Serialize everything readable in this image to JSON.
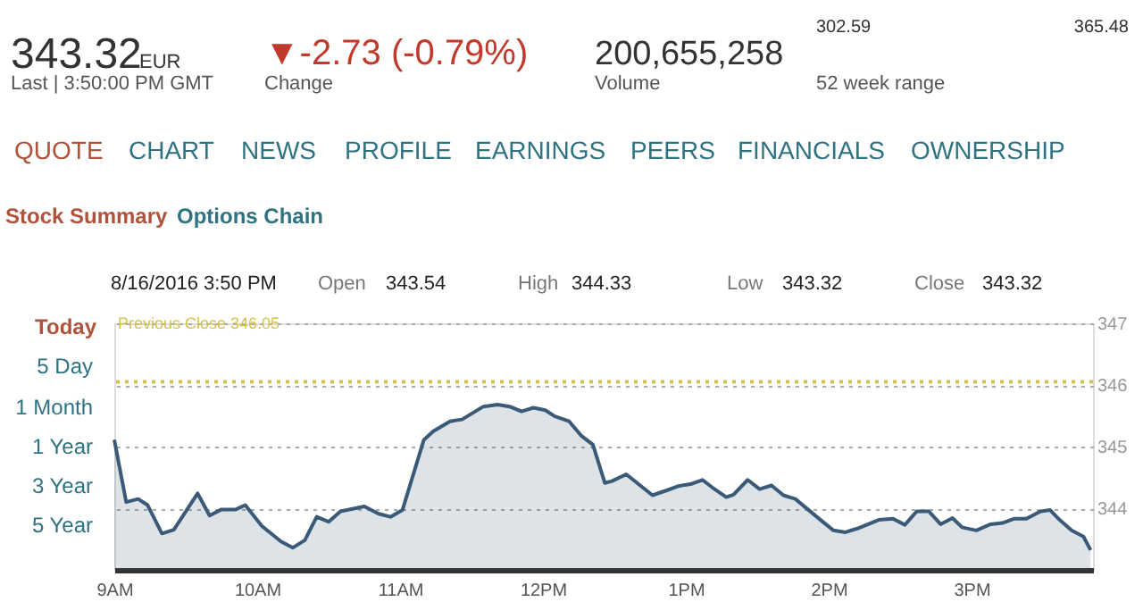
{
  "chart_data": {
    "type": "area",
    "x": [
      "2016-08-16T09:00",
      "2016-08-16T09:05",
      "2016-08-16T09:10",
      "2016-08-16T09:14",
      "2016-08-16T09:20",
      "2016-08-16T09:25",
      "2016-08-16T09:35",
      "2016-08-16T09:40",
      "2016-08-16T09:45",
      "2016-08-16T09:51",
      "2016-08-16T09:55",
      "2016-08-16T10:02",
      "2016-08-16T10:10",
      "2016-08-16T10:15",
      "2016-08-16T10:20",
      "2016-08-16T10:25",
      "2016-08-16T10:30",
      "2016-08-16T10:35",
      "2016-08-16T10:45",
      "2016-08-16T10:51",
      "2016-08-16T10:56",
      "2016-08-16T11:01",
      "2016-08-16T11:10",
      "2016-08-16T11:14",
      "2016-08-16T11:21",
      "2016-08-16T11:26",
      "2016-08-16T11:35",
      "2016-08-16T11:41",
      "2016-08-16T11:46",
      "2016-08-16T11:51",
      "2016-08-16T11:56",
      "2016-08-16T12:01",
      "2016-08-16T12:05",
      "2016-08-16T12:11",
      "2016-08-16T12:16",
      "2016-08-16T12:21",
      "2016-08-16T12:26",
      "2016-08-16T12:29",
      "2016-08-16T12:35",
      "2016-08-16T12:46",
      "2016-08-16T12:52",
      "2016-08-16T12:57",
      "2016-08-16T13:02",
      "2016-08-16T13:07",
      "2016-08-16T13:11",
      "2016-08-16T13:17",
      "2016-08-16T13:20",
      "2016-08-16T13:26",
      "2016-08-16T13:31",
      "2016-08-16T13:36",
      "2016-08-16T13:41",
      "2016-08-16T13:46",
      "2016-08-16T13:55",
      "2016-08-16T14:02",
      "2016-08-16T14:07",
      "2016-08-16T14:12",
      "2016-08-16T14:21",
      "2016-08-16T14:27",
      "2016-08-16T14:32",
      "2016-08-16T14:37",
      "2016-08-16T14:42",
      "2016-08-16T14:47",
      "2016-08-16T14:52",
      "2016-08-16T14:56",
      "2016-08-16T15:02",
      "2016-08-16T15:08",
      "2016-08-16T15:13",
      "2016-08-16T15:18",
      "2016-08-16T15:23",
      "2016-08-16T15:29",
      "2016-08-16T15:33",
      "2016-08-16T15:37",
      "2016-08-16T15:42",
      "2016-08-16T15:47",
      "2016-08-16T15:50"
    ],
    "series": [
      {
        "color": "#3a5a78",
        "values": [
          345.11,
          344.1,
          344.15,
          344.05,
          343.59,
          343.65,
          344.24,
          343.88,
          343.98,
          343.98,
          344.05,
          343.71,
          343.46,
          343.36,
          343.48,
          343.86,
          343.78,
          343.95,
          344.03,
          343.91,
          343.86,
          343.97,
          345.11,
          345.25,
          345.41,
          345.44,
          345.65,
          345.68,
          345.65,
          345.57,
          345.63,
          345.59,
          345.49,
          345.41,
          345.18,
          345.03,
          344.41,
          344.44,
          344.55,
          344.21,
          344.29,
          344.36,
          344.39,
          344.46,
          344.34,
          344.18,
          344.22,
          344.46,
          344.31,
          344.37,
          344.21,
          344.15,
          343.86,
          343.64,
          343.61,
          343.67,
          343.81,
          343.83,
          343.73,
          343.95,
          343.95,
          343.74,
          343.84,
          343.69,
          343.64,
          343.74,
          343.76,
          343.83,
          343.83,
          343.95,
          343.97,
          343.81,
          343.64,
          343.54,
          343.32
        ]
      }
    ],
    "xlim": [
      "2016-08-16T09:00",
      "2016-08-16T15:51"
    ],
    "xticks": [
      {
        "value": "2016-08-16T09:00",
        "label": "9AM"
      },
      {
        "value": "2016-08-16T10:00",
        "label": "10AM"
      },
      {
        "value": "2016-08-16T11:00",
        "label": "11AM"
      },
      {
        "value": "2016-08-16T12:00",
        "label": "12PM"
      },
      {
        "value": "2016-08-16T13:00",
        "label": "1PM"
      },
      {
        "value": "2016-08-16T14:00",
        "label": "2PM"
      },
      {
        "value": "2016-08-16T15:00",
        "label": "3PM"
      }
    ],
    "ylim": [
      343.0,
      347.0
    ],
    "yticks": [
      344,
      345,
      346,
      347
    ],
    "grid": "y",
    "line_style": "solid",
    "ref_lines": [
      {
        "axis": "y",
        "value": 346.05,
        "label": "Previous Close 346.05",
        "color": "#d4c24a",
        "line_style": "dotted"
      }
    ],
    "annotations": [
      "343.32",
      "EUR",
      "Last | 3:50:00 PM GMT",
      "▼-2.73 (-0.79%)",
      "Change",
      "200,655,258",
      "Volume",
      "302.59",
      "365.48",
      "52 week range",
      "QUOTE",
      "CHART",
      "NEWS",
      "PROFILE",
      "EARNINGS",
      "PEERS",
      "FINANCIALS",
      "OWNERSHIP",
      "Stock Summary",
      "Options Chain",
      "8/16/2016 3:50 PM",
      "Open",
      "343.54",
      "High",
      "344.33",
      "Low",
      "343.32",
      "Close",
      "343.32",
      "Today",
      "5 Day",
      "1 Month",
      "1 Year",
      "3 Year",
      "5 Year"
    ]
  }
}
